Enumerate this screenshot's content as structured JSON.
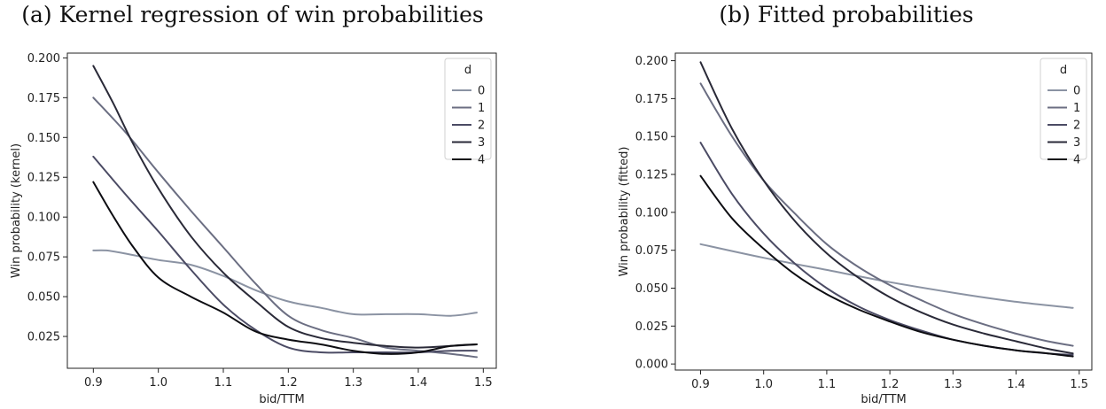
{
  "chart_data": [
    {
      "type": "line",
      "title": "(a) Kernel regression of win probabilities",
      "xlabel": "bid/TTM",
      "ylabel": "Win probability (kernel)",
      "xlim": [
        0.86,
        1.52
      ],
      "ylim": [
        0.005,
        0.203
      ],
      "xticks": [
        "0.9",
        "1.0",
        "1.1",
        "1.2",
        "1.3",
        "1.4",
        "1.5"
      ],
      "yticks": [
        "0.025",
        "0.050",
        "0.075",
        "0.100",
        "0.125",
        "0.150",
        "0.175",
        "0.200"
      ],
      "legend": {
        "title": "d",
        "placement": "top-right"
      },
      "grid": false,
      "series": [
        {
          "name": "0",
          "color": "#8b93a3",
          "x": [
            0.9,
            0.92,
            0.95,
            1.0,
            1.05,
            1.1,
            1.15,
            1.2,
            1.25,
            1.3,
            1.35,
            1.4,
            1.45,
            1.49
          ],
          "y": [
            0.079,
            0.079,
            0.077,
            0.073,
            0.07,
            0.063,
            0.054,
            0.047,
            0.043,
            0.039,
            0.039,
            0.039,
            0.038,
            0.04
          ]
        },
        {
          "name": "1",
          "color": "#6b6e82",
          "x": [
            0.9,
            0.95,
            1.0,
            1.05,
            1.1,
            1.15,
            1.2,
            1.25,
            1.3,
            1.35,
            1.4,
            1.45,
            1.49
          ],
          "y": [
            0.175,
            0.153,
            0.128,
            0.104,
            0.081,
            0.058,
            0.038,
            0.029,
            0.024,
            0.018,
            0.016,
            0.014,
            0.012
          ]
        },
        {
          "name": "2",
          "color": "#4b4b64",
          "x": [
            0.9,
            0.95,
            1.0,
            1.05,
            1.1,
            1.15,
            1.2,
            1.25,
            1.3,
            1.35,
            1.4,
            1.45,
            1.49
          ],
          "y": [
            0.138,
            0.114,
            0.091,
            0.067,
            0.045,
            0.029,
            0.018,
            0.015,
            0.015,
            0.015,
            0.015,
            0.016,
            0.016
          ]
        },
        {
          "name": "3",
          "color": "#2a2a38",
          "x": [
            0.9,
            0.93,
            0.96,
            1.0,
            1.05,
            1.1,
            1.15,
            1.2,
            1.25,
            1.3,
            1.35,
            1.4,
            1.45,
            1.49
          ],
          "y": [
            0.195,
            0.172,
            0.147,
            0.118,
            0.088,
            0.065,
            0.047,
            0.031,
            0.024,
            0.021,
            0.019,
            0.018,
            0.019,
            0.02
          ]
        },
        {
          "name": "4",
          "color": "#0d0d12",
          "x": [
            0.9,
            0.93,
            0.96,
            1.0,
            1.05,
            1.1,
            1.15,
            1.2,
            1.25,
            1.3,
            1.35,
            1.4,
            1.45,
            1.49
          ],
          "y": [
            0.122,
            0.101,
            0.082,
            0.062,
            0.05,
            0.04,
            0.028,
            0.023,
            0.02,
            0.016,
            0.014,
            0.015,
            0.019,
            0.02
          ]
        }
      ]
    },
    {
      "type": "line",
      "title": "(b) Fitted probabilities",
      "xlabel": "bid/TTM",
      "ylabel": "Win probability (fitted)",
      "xlim": [
        0.86,
        1.52
      ],
      "ylim": [
        -0.004,
        0.205
      ],
      "xticks": [
        "0.9",
        "1.0",
        "1.1",
        "1.2",
        "1.3",
        "1.4",
        "1.5"
      ],
      "yticks": [
        "0.000",
        "0.025",
        "0.050",
        "0.075",
        "0.100",
        "0.125",
        "0.150",
        "0.175",
        "0.200"
      ],
      "legend": {
        "title": "d",
        "placement": "top-right"
      },
      "grid": false,
      "series": [
        {
          "name": "0",
          "color": "#8b93a3",
          "x": [
            0.9,
            1.0,
            1.1,
            1.2,
            1.3,
            1.4,
            1.49
          ],
          "y": [
            0.079,
            0.07,
            0.062,
            0.054,
            0.047,
            0.041,
            0.037
          ]
        },
        {
          "name": "1",
          "color": "#6b6e82",
          "x": [
            0.9,
            0.95,
            1.0,
            1.05,
            1.1,
            1.15,
            1.2,
            1.25,
            1.3,
            1.35,
            1.4,
            1.45,
            1.49
          ],
          "y": [
            0.185,
            0.15,
            0.121,
            0.099,
            0.079,
            0.064,
            0.052,
            0.042,
            0.033,
            0.026,
            0.02,
            0.015,
            0.012
          ]
        },
        {
          "name": "2",
          "color": "#4b4b64",
          "x": [
            0.9,
            0.95,
            1.0,
            1.05,
            1.1,
            1.15,
            1.2,
            1.25,
            1.3,
            1.35,
            1.4,
            1.45,
            1.49
          ],
          "y": [
            0.146,
            0.112,
            0.086,
            0.066,
            0.05,
            0.038,
            0.029,
            0.022,
            0.016,
            0.012,
            0.009,
            0.007,
            0.006
          ]
        },
        {
          "name": "3",
          "color": "#2a2a38",
          "x": [
            0.9,
            0.95,
            1.0,
            1.05,
            1.1,
            1.15,
            1.2,
            1.25,
            1.3,
            1.35,
            1.4,
            1.45,
            1.49
          ],
          "y": [
            0.199,
            0.155,
            0.121,
            0.094,
            0.073,
            0.057,
            0.044,
            0.034,
            0.026,
            0.02,
            0.015,
            0.01,
            0.007
          ]
        },
        {
          "name": "4",
          "color": "#0d0d12",
          "x": [
            0.9,
            0.95,
            1.0,
            1.05,
            1.1,
            1.15,
            1.2,
            1.25,
            1.3,
            1.35,
            1.4,
            1.45,
            1.49
          ],
          "y": [
            0.124,
            0.096,
            0.076,
            0.059,
            0.046,
            0.036,
            0.028,
            0.021,
            0.016,
            0.012,
            0.009,
            0.007,
            0.005
          ]
        }
      ]
    }
  ]
}
